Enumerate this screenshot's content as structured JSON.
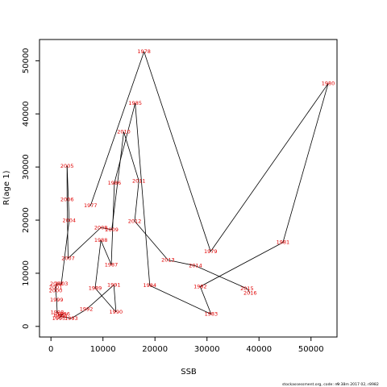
{
  "chart_data": {
    "type": "scatter",
    "xlabel": "SSB",
    "ylabel": "R(age 1)",
    "xlim": [
      -2200,
      55000
    ],
    "ylim": [
      -2000,
      54000
    ],
    "xticks": [
      0,
      10000,
      20000,
      30000,
      40000,
      50000
    ],
    "yticks": [
      0,
      10000,
      20000,
      30000,
      40000,
      50000
    ],
    "xtick_labels": [
      "0",
      "10000",
      "20000",
      "30000",
      "40000",
      "50000"
    ],
    "ytick_labels": [
      "0",
      "10000",
      "20000",
      "30000",
      "40000",
      "50000"
    ],
    "grid": false,
    "connected": true,
    "point_color": "#e00000",
    "line_color": "#000000",
    "points": [
      {
        "label": "1977",
        "x": 7600,
        "y": 22700
      },
      {
        "label": "1978",
        "x": 17900,
        "y": 51700
      },
      {
        "label": "1979",
        "x": 30700,
        "y": 14100
      },
      {
        "label": "1980",
        "x": 53300,
        "y": 45700
      },
      {
        "label": "1981",
        "x": 44600,
        "y": 15800
      },
      {
        "label": "1982",
        "x": 28700,
        "y": 7500
      },
      {
        "label": "1983",
        "x": 30800,
        "y": 2300
      },
      {
        "label": "1984",
        "x": 19000,
        "y": 7700
      },
      {
        "label": "1985",
        "x": 16200,
        "y": 42000
      },
      {
        "label": "1986",
        "x": 12200,
        "y": 27000
      },
      {
        "label": "1987",
        "x": 11600,
        "y": 11600
      },
      {
        "label": "1988",
        "x": 9600,
        "y": 16200
      },
      {
        "label": "1989",
        "x": 8500,
        "y": 7200
      },
      {
        "label": "1990",
        "x": 12500,
        "y": 2700
      },
      {
        "label": "1991",
        "x": 12100,
        "y": 7800
      },
      {
        "label": "1992",
        "x": 6800,
        "y": 3200
      },
      {
        "label": "1993",
        "x": 3900,
        "y": 1500
      },
      {
        "label": "1994",
        "x": 1900,
        "y": 1900
      },
      {
        "label": "1995",
        "x": 1500,
        "y": 1500
      },
      {
        "label": "1996",
        "x": 2400,
        "y": 2300
      },
      {
        "label": "1997",
        "x": 1600,
        "y": 2100
      },
      {
        "label": "1998",
        "x": 1200,
        "y": 2600
      },
      {
        "label": "1999",
        "x": 1100,
        "y": 5000
      },
      {
        "label": "2000",
        "x": 900,
        "y": 6700
      },
      {
        "label": "2001",
        "x": 900,
        "y": 7300
      },
      {
        "label": "2002",
        "x": 1100,
        "y": 8000
      },
      {
        "label": "2003",
        "x": 2000,
        "y": 8000
      },
      {
        "label": "2004",
        "x": 3500,
        "y": 19900
      },
      {
        "label": "2005",
        "x": 3100,
        "y": 30200
      },
      {
        "label": "2006",
        "x": 3100,
        "y": 23900
      },
      {
        "label": "2007",
        "x": 3300,
        "y": 12800
      },
      {
        "label": "2008",
        "x": 9600,
        "y": 18600
      },
      {
        "label": "2009",
        "x": 11700,
        "y": 18200
      },
      {
        "label": "2010",
        "x": 14000,
        "y": 36600
      },
      {
        "label": "2011",
        "x": 16900,
        "y": 27400
      },
      {
        "label": "2012",
        "x": 16100,
        "y": 19800
      },
      {
        "label": "2013",
        "x": 22500,
        "y": 12500
      },
      {
        "label": "2014",
        "x": 27800,
        "y": 11400
      },
      {
        "label": "2015",
        "x": 37700,
        "y": 7100
      },
      {
        "label": "2016",
        "x": 38300,
        "y": 6300
      }
    ]
  },
  "footer": {
    "text": "stockassessment.org, code: m",
    "text2": "9:38m 2017 02, r8982"
  }
}
